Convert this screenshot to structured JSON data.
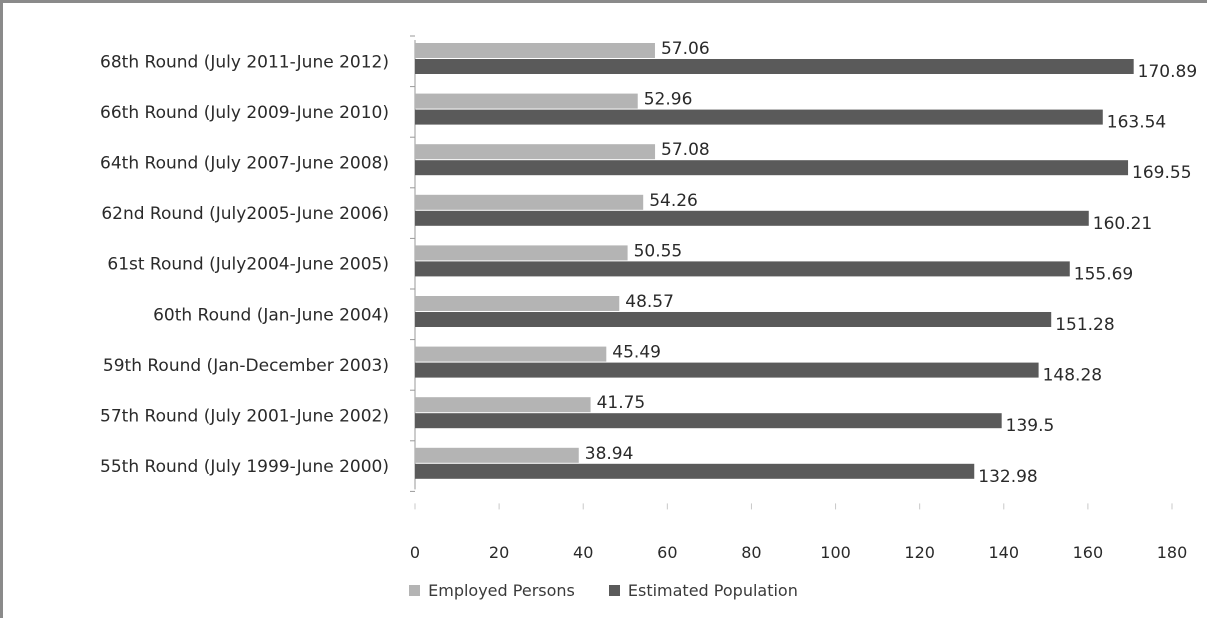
{
  "chart_data": {
    "type": "bar",
    "orientation": "horizontal",
    "categories": [
      "55th Round (July 1999-June 2000)",
      "57th Round (July 2001-June 2002)",
      "59th Round (Jan-December 2003)",
      "60th Round (Jan-June 2004)",
      "61st Round (July2004-June 2005)",
      "62nd Round (July2005-June 2006)",
      "64th Round (July 2007-June 2008)",
      "66th Round (July 2009-June 2010)",
      "68th Round (July 2011-June 2012)"
    ],
    "series": [
      {
        "name": "Employed Persons",
        "color": "#b4b4b4",
        "values": [
          38.94,
          41.75,
          45.49,
          48.57,
          50.55,
          54.26,
          57.08,
          52.96,
          57.06
        ],
        "labels": [
          "38.94",
          "41.75",
          "45.49",
          "48.57",
          "50.55",
          "54.26",
          "57.08",
          "52.96",
          "57.06"
        ]
      },
      {
        "name": "Estimated Population",
        "color": "#5a5a5a",
        "values": [
          132.98,
          139.5,
          148.28,
          151.28,
          155.69,
          160.21,
          169.55,
          163.54,
          170.89
        ],
        "labels": [
          "132.98",
          "139.5",
          "148.28",
          "151.28",
          "155.69",
          "160.21",
          "169.55",
          "163.54",
          "170.89"
        ]
      }
    ],
    "xlim": [
      0,
      180
    ],
    "xticks": [
      0,
      20,
      40,
      60,
      80,
      100,
      120,
      140,
      160,
      180
    ],
    "title": "",
    "xlabel": "",
    "ylabel": "",
    "legend_position": "bottom",
    "grid": false
  }
}
